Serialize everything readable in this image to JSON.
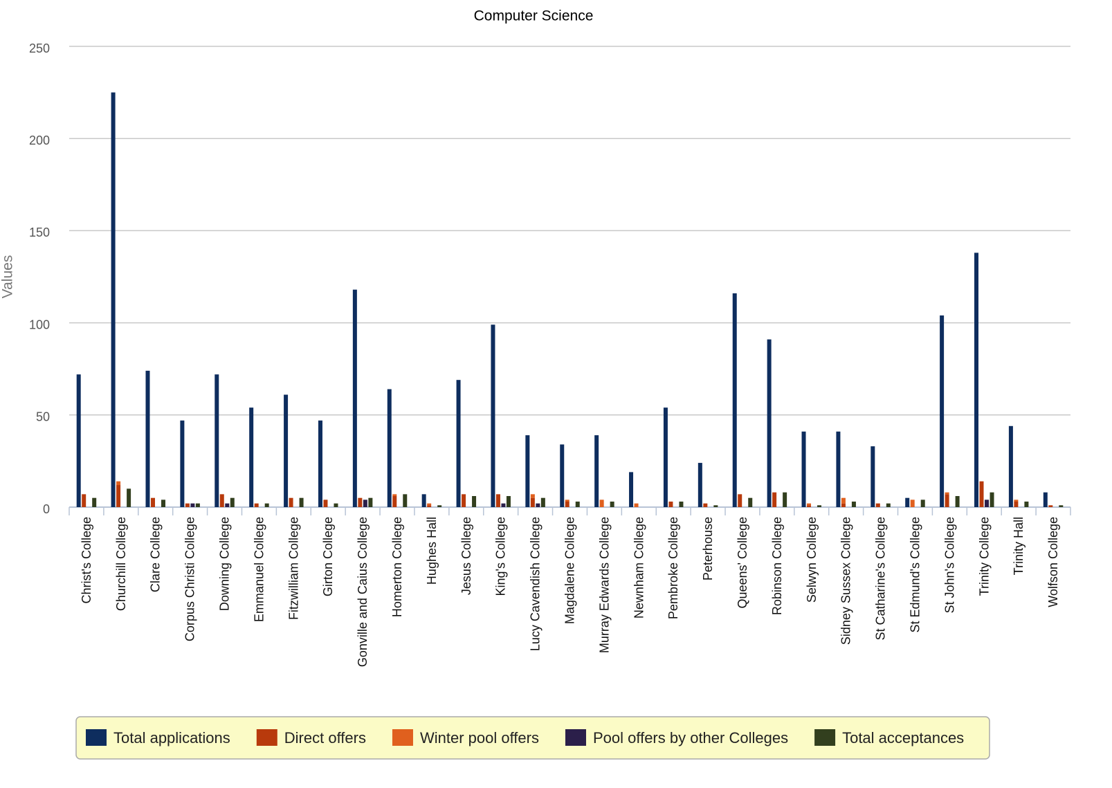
{
  "chart_data": {
    "type": "bar",
    "title": "Computer Science",
    "y_label": "Values",
    "categories": [
      "Christ's College",
      "Churchill College",
      "Clare College",
      "Corpus Christi College",
      "Downing College",
      "Emmanuel College",
      "Fitzwilliam College",
      "Girton College",
      "Gonville and Caius College",
      "Homerton College",
      "Hughes Hall",
      "Jesus College",
      "King's College",
      "Lucy Cavendish College",
      "Magdalene College",
      "Murray Edwards College",
      "Newnham College",
      "Pembroke College",
      "Peterhouse",
      "Queens' College",
      "Robinson College",
      "Selwyn College",
      "Sidney Sussex College",
      "St Catharine's College",
      "St Edmund's College",
      "St John's College",
      "Trinity College",
      "Trinity Hall",
      "Wolfson College"
    ],
    "series": [
      {
        "name": "Total applications",
        "color": "#0e2d5e",
        "values": [
          72,
          225,
          74,
          47,
          72,
          54,
          61,
          47,
          118,
          64,
          7,
          69,
          99,
          39,
          34,
          39,
          19,
          54,
          24,
          116,
          91,
          41,
          41,
          33,
          5,
          104,
          138,
          44,
          8
        ]
      },
      {
        "name": "Direct offers",
        "color": "#b83a0c",
        "stack": "offers",
        "values": [
          7,
          12,
          5,
          2,
          7,
          2,
          5,
          4,
          5,
          6,
          1,
          7,
          7,
          5,
          3,
          0,
          0,
          3,
          2,
          7,
          8,
          1,
          2,
          2,
          0,
          7,
          14,
          3,
          1
        ]
      },
      {
        "name": "Winter pool offers",
        "color": "#e0601e",
        "stack": "offers",
        "values": [
          0,
          2,
          0,
          0,
          0,
          0,
          0,
          0,
          0,
          1,
          1,
          0,
          0,
          2,
          1,
          4,
          2,
          0,
          0,
          0,
          0,
          1,
          3,
          0,
          4,
          1,
          0,
          1,
          0
        ]
      },
      {
        "name": "Pool offers by other Colleges",
        "color": "#2b1f4a",
        "values": [
          0,
          0,
          0,
          2,
          2,
          0,
          0,
          0,
          4,
          0,
          0,
          0,
          2,
          2,
          0,
          0,
          0,
          0,
          0,
          0,
          0,
          0,
          0,
          0,
          0,
          0,
          4,
          0,
          0
        ]
      },
      {
        "name": "Total acceptances",
        "color": "#323f1e",
        "values": [
          5,
          10,
          4,
          2,
          5,
          2,
          5,
          2,
          5,
          7,
          1,
          6,
          6,
          5,
          3,
          3,
          0,
          3,
          1,
          5,
          8,
          1,
          3,
          2,
          4,
          6,
          8,
          3,
          1
        ]
      }
    ],
    "ylim": [
      0,
      250
    ],
    "yticks": [
      0,
      50,
      100,
      150,
      200,
      250
    ],
    "grid": true
  }
}
